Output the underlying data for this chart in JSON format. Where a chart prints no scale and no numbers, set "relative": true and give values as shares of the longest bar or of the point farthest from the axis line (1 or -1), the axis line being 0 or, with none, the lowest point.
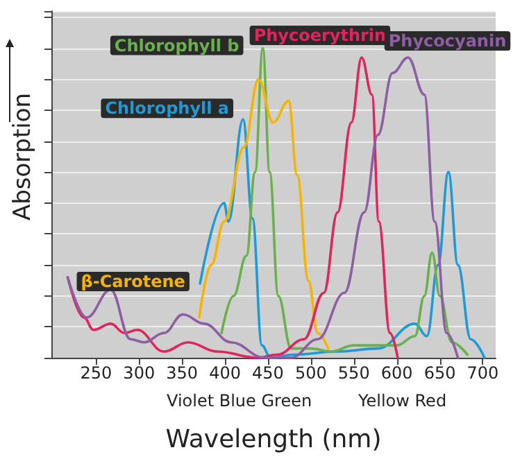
{
  "chart_data": {
    "type": "line",
    "relative": true,
    "xlabel": "Wavelength (nm)",
    "ylabel": "Absorption",
    "xlim": [
      198,
      715
    ],
    "xticks": [
      250,
      300,
      350,
      400,
      450,
      500,
      550,
      600,
      650,
      700
    ],
    "grid": "y",
    "marker": "none",
    "line_style": "solid",
    "legend": false,
    "annotations": [
      "Violet Blue Green",
      "Yellow Red"
    ],
    "series": [
      {
        "name": "Chlorophyll a",
        "color": "#1e9ad6",
        "x": [
          371,
          399,
          404,
          421,
          432,
          443,
          453,
          480,
          530,
          578,
          621,
          635,
          648,
          660,
          671,
          686,
          702
        ],
        "values": [
          0.24,
          0.5,
          0.44,
          0.77,
          0.45,
          0.04,
          0,
          0.01,
          0.02,
          0.03,
          0.11,
          0.07,
          0.3,
          0.6,
          0.3,
          0.06,
          0
        ]
      },
      {
        "name": "Chlorophyll b",
        "color": "#6ab04c",
        "x": [
          396,
          410,
          425,
          435,
          444,
          452,
          462,
          477,
          500,
          523,
          550,
          575,
          600,
          621,
          632,
          641,
          650,
          664,
          682
        ],
        "values": [
          0.08,
          0.2,
          0.33,
          0.6,
          1.0,
          0.6,
          0.2,
          0.03,
          0.03,
          0.02,
          0.04,
          0.04,
          0.04,
          0.07,
          0.2,
          0.34,
          0.2,
          0.05,
          0.01
        ]
      },
      {
        "name": "β-Carotene",
        "color": "#f5b400",
        "x": [
          370,
          384,
          399,
          422,
          439,
          456,
          474,
          484,
          497,
          508,
          520
        ],
        "values": [
          0.13,
          0.3,
          0.44,
          0.68,
          0.9,
          0.76,
          0.83,
          0.59,
          0.25,
          0.08,
          0.03
        ]
      },
      {
        "name": "Phycoerythrin",
        "color": "#e0245e",
        "x": [
          217,
          236,
          247,
          267,
          283,
          298,
          329,
          357,
          391,
          438,
          461,
          492,
          515,
          531,
          547,
          559,
          571,
          579,
          592,
          601
        ],
        "values": [
          0.26,
          0.13,
          0.09,
          0.11,
          0.08,
          0.09,
          0.02,
          0.05,
          0.02,
          0,
          0.01,
          0.06,
          0.21,
          0.47,
          0.76,
          0.97,
          0.85,
          0.44,
          0.08,
          0
        ]
      },
      {
        "name": "Phycocyanin",
        "color": "#8e5ea2",
        "x": [
          217,
          239,
          267,
          290,
          306,
          329,
          351,
          376,
          407,
          446,
          477,
          508,
          539,
          562,
          578,
          595,
          613,
          632,
          644,
          658,
          671
        ],
        "values": [
          0.26,
          0.13,
          0.22,
          0.06,
          0.05,
          0.08,
          0.14,
          0.11,
          0.05,
          0,
          0,
          0.06,
          0.21,
          0.47,
          0.72,
          0.92,
          0.97,
          0.85,
          0.44,
          0.08,
          0
        ]
      }
    ]
  }
}
